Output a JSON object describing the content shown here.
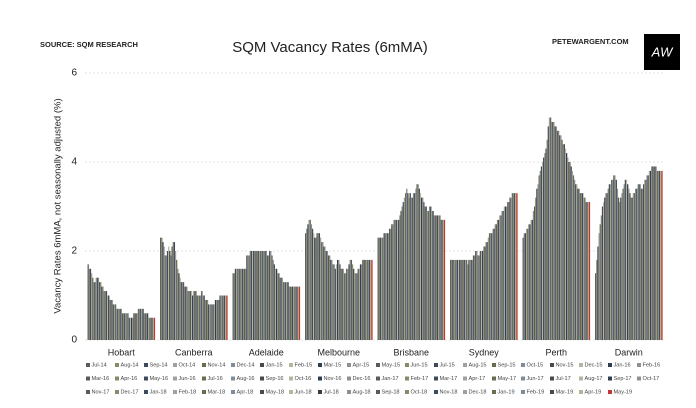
{
  "chart_data": {
    "type": "bar",
    "title": "SQM Vacancy Rates (6mMA)",
    "source": "SOURCE: SQM RESEARCH",
    "credit": "PETEWARGENT.COM",
    "logo": "AW",
    "y_label": "Vacancy Rates 6mMA, not seasonally adjusted (%)",
    "categories": [
      "Hobart",
      "Canberra",
      "Adelaide",
      "Melbourne",
      "Brisbane",
      "Sydney",
      "Perth",
      "Darwin"
    ],
    "ylim": [
      0,
      6
    ],
    "yticks": [
      0,
      2,
      4,
      6
    ],
    "grid": true,
    "series": [
      {
        "name": "Jul-14",
        "color": "#5a5a5a",
        "values": [
          1.7,
          2.3,
          1.5,
          2.4,
          2.3,
          1.8,
          2.3,
          1.5
        ]
      },
      {
        "name": "Aug-14",
        "color": "#8a8a6a",
        "values": [
          1.6,
          2.3,
          1.5,
          2.5,
          2.3,
          1.8,
          2.4,
          1.8
        ]
      },
      {
        "name": "Sep-14",
        "color": "#3d4a5c",
        "values": [
          1.6,
          2.2,
          1.6,
          2.6,
          2.3,
          1.8,
          2.4,
          2.1
        ]
      },
      {
        "name": "Oct-14",
        "color": "#a0a0a0",
        "values": [
          1.5,
          2.1,
          1.6,
          2.7,
          2.3,
          1.8,
          2.5,
          2.4
        ]
      },
      {
        "name": "Nov-14",
        "color": "#6b6b4f",
        "values": [
          1.4,
          1.9,
          1.6,
          2.7,
          2.3,
          1.8,
          2.5,
          2.6
        ]
      },
      {
        "name": "Dec-14",
        "color": "#7f8c99",
        "values": [
          1.3,
          1.9,
          1.6,
          2.6,
          2.4,
          1.8,
          2.6,
          2.8
        ]
      },
      {
        "name": "Jan-15",
        "color": "#4a4a4a",
        "values": [
          1.3,
          2.0,
          1.6,
          2.5,
          2.4,
          1.8,
          2.6,
          3.0
        ]
      },
      {
        "name": "Feb-15",
        "color": "#b5b5a0",
        "values": [
          1.4,
          2.1,
          1.6,
          2.4,
          2.4,
          1.8,
          2.7,
          3.1
        ]
      },
      {
        "name": "Mar-15",
        "color": "#2f3f4f",
        "values": [
          1.4,
          2.0,
          1.6,
          2.3,
          2.4,
          1.8,
          2.7,
          3.2
        ]
      },
      {
        "name": "Apr-15",
        "color": "#909090",
        "values": [
          1.4,
          1.9,
          1.6,
          2.3,
          2.4,
          1.8,
          2.9,
          3.3
        ]
      },
      {
        "name": "May-15",
        "color": "#5a5a5a",
        "values": [
          1.3,
          2.1,
          1.6,
          2.4,
          2.5,
          1.8,
          3.0,
          3.3
        ]
      },
      {
        "name": "Jun-15",
        "color": "#8a8a6a",
        "values": [
          1.3,
          2.2,
          1.6,
          2.4,
          2.5,
          1.8,
          3.2,
          3.4
        ]
      },
      {
        "name": "Jul-15",
        "color": "#3d4a5c",
        "values": [
          1.2,
          2.2,
          1.9,
          2.4,
          2.6,
          1.8,
          3.4,
          3.5
        ]
      },
      {
        "name": "Aug-15",
        "color": "#a0a0a0",
        "values": [
          1.2,
          2.0,
          1.9,
          2.3,
          2.6,
          1.8,
          3.5,
          3.5
        ]
      },
      {
        "name": "Sep-15",
        "color": "#6b6b4f",
        "values": [
          1.1,
          1.8,
          1.9,
          2.2,
          2.7,
          1.8,
          3.7,
          3.6
        ]
      },
      {
        "name": "Oct-15",
        "color": "#7f8c99",
        "values": [
          1.1,
          1.6,
          2.0,
          2.2,
          2.7,
          1.7,
          3.8,
          3.6
        ]
      },
      {
        "name": "Nov-15",
        "color": "#4a4a4a",
        "values": [
          1.1,
          1.5,
          2.0,
          2.1,
          2.7,
          1.8,
          3.9,
          3.7
        ]
      },
      {
        "name": "Dec-15",
        "color": "#b5b5a0",
        "values": [
          1.0,
          1.4,
          2.0,
          2.1,
          2.7,
          1.8,
          4.0,
          3.7
        ]
      },
      {
        "name": "Jan-16",
        "color": "#2f3f4f",
        "values": [
          1.0,
          1.3,
          2.0,
          2.0,
          2.7,
          1.8,
          4.1,
          3.6
        ]
      },
      {
        "name": "Feb-16",
        "color": "#909090",
        "values": [
          0.9,
          1.3,
          2.0,
          2.0,
          2.8,
          1.8,
          4.2,
          3.4
        ]
      },
      {
        "name": "Mar-16",
        "color": "#5a5a5a",
        "values": [
          0.9,
          1.3,
          2.0,
          1.9,
          2.9,
          1.9,
          4.3,
          3.2
        ]
      },
      {
        "name": "Apr-16",
        "color": "#8a8a6a",
        "values": [
          0.9,
          1.2,
          2.0,
          1.9,
          3.0,
          1.9,
          4.5,
          3.1
        ]
      },
      {
        "name": "May-16",
        "color": "#3d4a5c",
        "values": [
          0.8,
          1.2,
          2.0,
          1.8,
          3.1,
          2.0,
          4.8,
          3.2
        ]
      },
      {
        "name": "Jun-16",
        "color": "#a0a0a0",
        "values": [
          0.8,
          1.2,
          2.0,
          1.8,
          3.2,
          2.0,
          5.0,
          3.3
        ]
      },
      {
        "name": "Jul-16",
        "color": "#6b6b4f",
        "values": [
          0.8,
          1.1,
          2.0,
          1.7,
          3.3,
          1.9,
          5.0,
          3.4
        ]
      },
      {
        "name": "Aug-16",
        "color": "#7f8c99",
        "values": [
          0.7,
          1.1,
          2.0,
          1.7,
          3.4,
          1.9,
          4.9,
          3.5
        ]
      },
      {
        "name": "Sep-16",
        "color": "#4a4a4a",
        "values": [
          0.7,
          1.1,
          2.0,
          1.6,
          3.3,
          2.0,
          4.9,
          3.6
        ]
      },
      {
        "name": "Oct-16",
        "color": "#b5b5a0",
        "values": [
          0.7,
          1.1,
          2.0,
          1.7,
          3.2,
          2.0,
          4.9,
          3.6
        ]
      },
      {
        "name": "Nov-16",
        "color": "#2f3f4f",
        "values": [
          0.7,
          1.0,
          2.0,
          1.8,
          3.3,
          2.0,
          4.8,
          3.5
        ]
      },
      {
        "name": "Dec-16",
        "color": "#909090",
        "values": [
          0.7,
          1.1,
          2.0,
          1.8,
          3.2,
          2.1,
          4.8,
          3.4
        ]
      },
      {
        "name": "Jan-17",
        "color": "#5a5a5a",
        "values": [
          0.6,
          1.1,
          1.9,
          1.7,
          3.2,
          2.1,
          4.7,
          3.3
        ]
      },
      {
        "name": "Feb-17",
        "color": "#8a8a6a",
        "values": [
          0.6,
          1.1,
          1.9,
          1.6,
          3.3,
          2.2,
          4.7,
          3.2
        ]
      },
      {
        "name": "Mar-17",
        "color": "#3d4a5c",
        "values": [
          0.6,
          1.0,
          2.0,
          1.6,
          3.3,
          2.2,
          4.6,
          3.2
        ]
      },
      {
        "name": "Apr-17",
        "color": "#a0a0a0",
        "values": [
          0.6,
          1.0,
          2.0,
          1.6,
          3.4,
          2.3,
          4.6,
          3.3
        ]
      },
      {
        "name": "May-17",
        "color": "#6b6b4f",
        "values": [
          0.6,
          1.0,
          1.9,
          1.5,
          3.5,
          2.4,
          4.5,
          3.3
        ]
      },
      {
        "name": "Jun-17",
        "color": "#7f8c99",
        "values": [
          0.6,
          1.0,
          1.8,
          1.5,
          3.5,
          2.4,
          4.4,
          3.4
        ]
      },
      {
        "name": "Jul-17",
        "color": "#4a4a4a",
        "values": [
          0.5,
          1.1,
          1.7,
          1.6,
          3.4,
          2.4,
          4.4,
          3.4
        ]
      },
      {
        "name": "Aug-17",
        "color": "#b5b5a0",
        "values": [
          0.5,
          1.0,
          1.6,
          1.6,
          3.3,
          2.5,
          4.3,
          3.5
        ]
      },
      {
        "name": "Sep-17",
        "color": "#2f3f4f",
        "values": [
          0.5,
          1.0,
          1.6,
          1.7,
          3.2,
          2.5,
          4.2,
          3.5
        ]
      },
      {
        "name": "Oct-17",
        "color": "#909090",
        "values": [
          0.5,
          0.9,
          1.5,
          1.8,
          3.2,
          2.6,
          4.1,
          3.5
        ]
      },
      {
        "name": "Nov-17",
        "color": "#5a5a5a",
        "values": [
          0.6,
          0.9,
          1.5,
          1.8,
          3.1,
          2.6,
          4.0,
          3.4
        ]
      },
      {
        "name": "Dec-17",
        "color": "#8a8a6a",
        "values": [
          0.6,
          0.9,
          1.4,
          1.7,
          3.0,
          2.7,
          4.0,
          3.4
        ]
      },
      {
        "name": "Jan-18",
        "color": "#3d4a5c",
        "values": [
          0.6,
          0.8,
          1.4,
          1.6,
          3.0,
          2.7,
          3.9,
          3.5
        ]
      },
      {
        "name": "Feb-18",
        "color": "#a0a0a0",
        "values": [
          0.6,
          0.8,
          1.4,
          1.5,
          2.9,
          2.8,
          3.8,
          3.6
        ]
      },
      {
        "name": "Mar-18",
        "color": "#6b6b4f",
        "values": [
          0.7,
          0.8,
          1.3,
          1.5,
          2.9,
          2.8,
          3.7,
          3.6
        ]
      },
      {
        "name": "Apr-18",
        "color": "#7f8c99",
        "values": [
          0.7,
          0.8,
          1.3,
          1.5,
          3.0,
          2.9,
          3.6,
          3.7
        ]
      },
      {
        "name": "May-18",
        "color": "#4a4a4a",
        "values": [
          0.7,
          0.8,
          1.3,
          1.6,
          3.0,
          2.9,
          3.5,
          3.7
        ]
      },
      {
        "name": "Jun-18",
        "color": "#b5b5a0",
        "values": [
          0.7,
          0.8,
          1.3,
          1.6,
          2.9,
          3.0,
          3.5,
          3.8
        ]
      },
      {
        "name": "Jul-18",
        "color": "#2f3f4f",
        "values": [
          0.7,
          0.9,
          1.3,
          1.7,
          2.9,
          3.0,
          3.4,
          3.8
        ]
      },
      {
        "name": "Aug-18",
        "color": "#909090",
        "values": [
          0.6,
          0.9,
          1.2,
          1.7,
          2.8,
          3.0,
          3.4,
          3.9
        ]
      },
      {
        "name": "Sep-18",
        "color": "#5a5a5a",
        "values": [
          0.6,
          0.9,
          1.2,
          1.8,
          2.8,
          3.1,
          3.3,
          3.9
        ]
      },
      {
        "name": "Oct-18",
        "color": "#8a8a6a",
        "values": [
          0.6,
          0.9,
          1.2,
          1.8,
          2.8,
          3.1,
          3.3,
          3.9
        ]
      },
      {
        "name": "Nov-18",
        "color": "#3d4a5c",
        "values": [
          0.6,
          1.0,
          1.2,
          1.8,
          2.8,
          3.2,
          3.3,
          3.9
        ]
      },
      {
        "name": "Dec-18",
        "color": "#a0a0a0",
        "values": [
          0.5,
          1.0,
          1.2,
          1.8,
          2.8,
          3.2,
          3.2,
          3.9
        ]
      },
      {
        "name": "Jan-19",
        "color": "#6b6b4f",
        "values": [
          0.5,
          1.0,
          1.2,
          1.8,
          2.8,
          3.3,
          3.2,
          3.8
        ]
      },
      {
        "name": "Feb-19",
        "color": "#7f8c99",
        "values": [
          0.5,
          1.0,
          1.2,
          1.8,
          2.7,
          3.3,
          3.1,
          3.8
        ]
      },
      {
        "name": "Mar-19",
        "color": "#4a4a4a",
        "values": [
          0.5,
          1.0,
          1.2,
          1.8,
          2.7,
          3.3,
          3.1,
          3.8
        ]
      },
      {
        "name": "Apr-19",
        "color": "#b5b5a0",
        "values": [
          0.5,
          1.0,
          1.2,
          1.8,
          2.7,
          3.3,
          3.1,
          3.8
        ]
      },
      {
        "name": "May-19",
        "color": "#c0392b",
        "values": [
          0.5,
          1.0,
          1.2,
          1.8,
          2.7,
          3.3,
          3.1,
          3.8
        ]
      }
    ]
  }
}
